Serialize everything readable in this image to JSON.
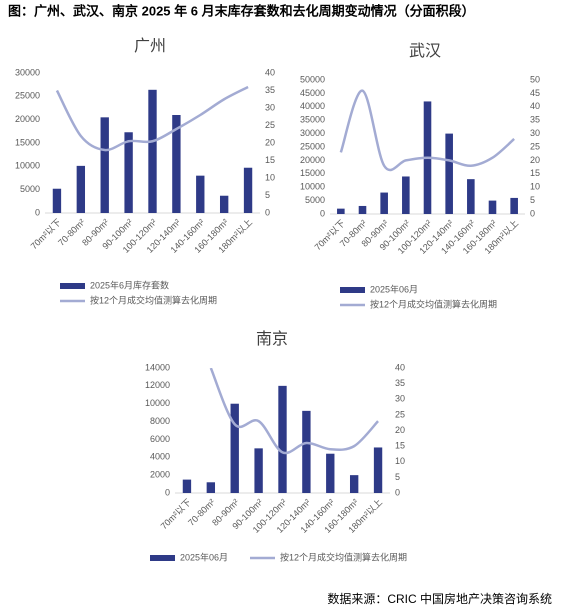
{
  "title": "图：广州、武汉、南京 2025 年 6 月末库存套数和去化周期变动情况（分面积段）",
  "source": "数据来源：CRIC 中国房地产决策咨询系统",
  "chart_data": [
    {
      "type": "bar_line",
      "title": "广州",
      "categories": [
        "70m²以下",
        "70-80m²",
        "80-90m²",
        "90-100m²",
        "100-120m²",
        "120-140m²",
        "140-160m²",
        "160-180m²",
        "180m²以上"
      ],
      "series": [
        {
          "name": "2025年6月库存套数",
          "color": "#2e3a87",
          "values": [
            5200,
            10100,
            20500,
            17300,
            26400,
            21000,
            8000,
            3700,
            9700
          ]
        },
        {
          "name": "按12个月成交均值测算去化周期",
          "color": "#a3abd3",
          "axis": "y2",
          "values": [
            35,
            22,
            18,
            20.5,
            20.5,
            24,
            28,
            32.5,
            36
          ]
        }
      ],
      "ylim": [
        0,
        30000
      ],
      "yticks": [
        0,
        5000,
        10000,
        15000,
        20000,
        25000,
        30000
      ],
      "y2lim": [
        0,
        40
      ],
      "y2ticks": [
        0,
        5,
        10,
        15,
        20,
        25,
        30,
        35,
        40
      ],
      "legend": "bottom"
    },
    {
      "type": "bar_line",
      "title": "武汉",
      "categories": [
        "70m²以下",
        "70-80m²",
        "80-90m²",
        "90-100m²",
        "100-120m²",
        "120-140m²",
        "140-160m²",
        "160-180m²",
        "180m²以上"
      ],
      "series": [
        {
          "name": "2025年06月",
          "color": "#2e3a87",
          "values": [
            2000,
            3000,
            8000,
            14000,
            42000,
            30000,
            13000,
            5000,
            6000
          ]
        },
        {
          "name": "按12个月成交均值测算去化周期",
          "color": "#a3abd3",
          "axis": "y2",
          "values": [
            23,
            46,
            18,
            20,
            21,
            20,
            18,
            21,
            28
          ]
        }
      ],
      "ylim": [
        0,
        50000
      ],
      "yticks": [
        0,
        5000,
        10000,
        15000,
        20000,
        25000,
        30000,
        35000,
        40000,
        45000,
        50000
      ],
      "y2lim": [
        0,
        50
      ],
      "y2ticks": [
        0,
        5,
        10,
        15,
        20,
        25,
        30,
        35,
        40,
        45,
        50
      ],
      "legend": "bottom"
    },
    {
      "type": "bar_line",
      "title": "南京",
      "categories": [
        "70m²以下",
        "70-80m²",
        "80-90m²",
        "90-100m²",
        "100-120m²",
        "120-140m²",
        "140-160m²",
        "160-180m²",
        "180m²以上"
      ],
      "series": [
        {
          "name": "2025年06月",
          "color": "#2e3a87",
          "values": [
            1500,
            1200,
            10000,
            5000,
            12000,
            9200,
            4400,
            2000,
            5100
          ]
        },
        {
          "name": "按12个月成交均值测算去化周期",
          "color": "#a3abd3",
          "axis": "y2",
          "values": [
            null,
            40,
            22,
            23,
            13,
            16,
            14,
            15,
            23
          ]
        }
      ],
      "ylim": [
        0,
        14000
      ],
      "yticks": [
        0,
        2000,
        4000,
        6000,
        8000,
        10000,
        12000,
        14000
      ],
      "y2lim": [
        0,
        40
      ],
      "y2ticks": [
        0,
        5,
        10,
        15,
        20,
        25,
        30,
        35,
        40
      ],
      "legend": "bottom"
    }
  ]
}
